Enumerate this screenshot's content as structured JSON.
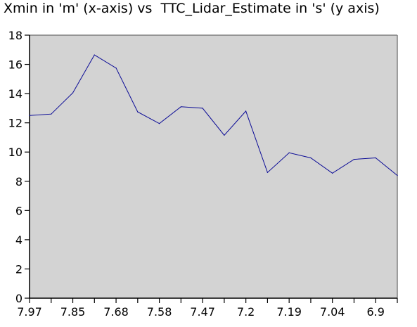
{
  "chart_data": {
    "type": "line",
    "title": "Xmin in 'm' (x-axis) vs  TTC_Lidar_Estimate in 's' (y axis)",
    "xlabel": "",
    "ylabel": "",
    "x_tick_labels": [
      "7.97",
      "7.85",
      "7.68",
      "7.58",
      "7.47",
      "7.2",
      "7.19",
      "7.04",
      "6.9"
    ],
    "y_ticks": [
      0,
      2,
      4,
      6,
      8,
      10,
      12,
      14,
      16,
      18
    ],
    "ylim": [
      0,
      18
    ],
    "grid": false,
    "series": [
      {
        "values": [
          12.5,
          12.6,
          14.05,
          16.65,
          15.75,
          12.75,
          11.95,
          13.1,
          13.0,
          11.15,
          12.8,
          8.6,
          9.95,
          9.6,
          8.55,
          9.5,
          9.6,
          8.4
        ]
      }
    ],
    "colors": {
      "plot_background": "#d3d3d3",
      "line": "#0a0a96",
      "axis": "#000000",
      "frame": "#808080"
    }
  }
}
